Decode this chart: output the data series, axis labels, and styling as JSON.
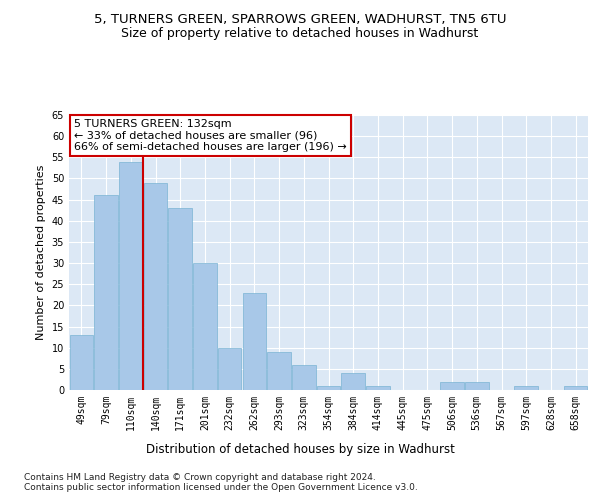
{
  "title1": "5, TURNERS GREEN, SPARROWS GREEN, WADHURST, TN5 6TU",
  "title2": "Size of property relative to detached houses in Wadhurst",
  "xlabel": "Distribution of detached houses by size in Wadhurst",
  "ylabel": "Number of detached properties",
  "categories": [
    "49sqm",
    "79sqm",
    "110sqm",
    "140sqm",
    "171sqm",
    "201sqm",
    "232sqm",
    "262sqm",
    "293sqm",
    "323sqm",
    "354sqm",
    "384sqm",
    "414sqm",
    "445sqm",
    "475sqm",
    "506sqm",
    "536sqm",
    "567sqm",
    "597sqm",
    "628sqm",
    "658sqm"
  ],
  "values": [
    13,
    46,
    54,
    49,
    43,
    30,
    10,
    23,
    9,
    6,
    1,
    4,
    1,
    0,
    0,
    2,
    2,
    0,
    1,
    0,
    1
  ],
  "bar_color": "#a8c8e8",
  "bar_edge_color": "#7ab4d4",
  "background_color": "#dce8f5",
  "grid_color": "#ffffff",
  "annotation_box_text": "5 TURNERS GREEN: 132sqm\n← 33% of detached houses are smaller (96)\n66% of semi-detached houses are larger (196) →",
  "annotation_box_color": "#ffffff",
  "annotation_box_edge_color": "#cc0000",
  "vline_x": 2.5,
  "vline_color": "#cc0000",
  "ylim": [
    0,
    65
  ],
  "yticks": [
    0,
    5,
    10,
    15,
    20,
    25,
    30,
    35,
    40,
    45,
    50,
    55,
    60,
    65
  ],
  "footer": "Contains HM Land Registry data © Crown copyright and database right 2024.\nContains public sector information licensed under the Open Government Licence v3.0.",
  "title1_fontsize": 9.5,
  "title2_fontsize": 9,
  "tick_fontsize": 7,
  "ylabel_fontsize": 8,
  "xlabel_fontsize": 8.5,
  "footer_fontsize": 6.5,
  "annotation_fontsize": 8
}
